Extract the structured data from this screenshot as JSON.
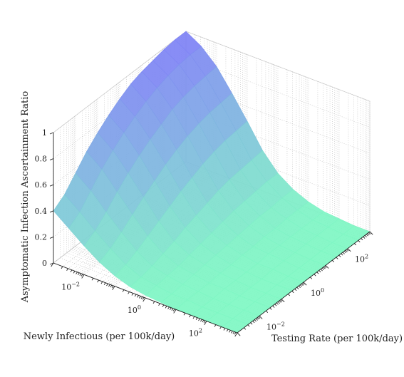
{
  "chart_data": {
    "type": "surface",
    "title": "",
    "xlabel": "Newly Infectious (per 100k/day)",
    "ylabel": "Testing Rate (per 100k/day)",
    "zlabel": "Asymptomatic Infection Ascertainment Ratio",
    "x_scale": "log",
    "y_scale": "log",
    "xlim": [
      0.001,
      1000
    ],
    "ylim": [
      0.001,
      1000
    ],
    "zlim": [
      0,
      1
    ],
    "grid": true,
    "x_ticks": [
      {
        "value": 0.01,
        "base": "10",
        "exp": "−2"
      },
      {
        "value": 1,
        "base": "10",
        "exp": "0"
      },
      {
        "value": 100,
        "base": "10",
        "exp": "2"
      }
    ],
    "y_ticks": [
      {
        "value": 0.01,
        "base": "10",
        "exp": "−2"
      },
      {
        "value": 1,
        "base": "10",
        "exp": "0"
      },
      {
        "value": 100,
        "base": "10",
        "exp": "2"
      }
    ],
    "z_ticks": [
      "0",
      "0.2",
      "0.4",
      "0.6",
      "0.8",
      "1"
    ],
    "colormap": {
      "low": "#7ff7c4",
      "high": "#7f7ff7"
    },
    "surface": {
      "x_log10": [
        -3,
        -2.5,
        -2,
        -1.5,
        -1,
        -0.5,
        0,
        0.5,
        1,
        1.5,
        2,
        2.5,
        3
      ],
      "y_log10": [
        -3,
        -2.5,
        -2,
        -1.5,
        -1,
        -0.5,
        0,
        0.5,
        1,
        1.5,
        2,
        2.5,
        3
      ],
      "z": [
        [
          0.4,
          0.46,
          0.56,
          0.66,
          0.74,
          0.81,
          0.87,
          0.92,
          0.95,
          0.97,
          0.99,
          1.0,
          1.0
        ],
        [
          0.31,
          0.37,
          0.47,
          0.57,
          0.65,
          0.72,
          0.78,
          0.83,
          0.87,
          0.9,
          0.92,
          0.93,
          0.93
        ],
        [
          0.22,
          0.27,
          0.35,
          0.44,
          0.52,
          0.59,
          0.65,
          0.7,
          0.75,
          0.78,
          0.8,
          0.81,
          0.82
        ],
        [
          0.14,
          0.18,
          0.24,
          0.31,
          0.38,
          0.44,
          0.5,
          0.55,
          0.59,
          0.62,
          0.64,
          0.65,
          0.66
        ],
        [
          0.08,
          0.1,
          0.14,
          0.19,
          0.24,
          0.29,
          0.34,
          0.38,
          0.42,
          0.45,
          0.47,
          0.48,
          0.49
        ],
        [
          0.04,
          0.05,
          0.07,
          0.1,
          0.13,
          0.17,
          0.2,
          0.23,
          0.26,
          0.28,
          0.29,
          0.3,
          0.31
        ],
        [
          0.02,
          0.03,
          0.04,
          0.05,
          0.07,
          0.09,
          0.11,
          0.13,
          0.15,
          0.16,
          0.17,
          0.18,
          0.18
        ],
        [
          0.01,
          0.01,
          0.02,
          0.03,
          0.04,
          0.05,
          0.06,
          0.07,
          0.08,
          0.09,
          0.09,
          0.1,
          0.1
        ],
        [
          0.0,
          0.01,
          0.01,
          0.01,
          0.02,
          0.02,
          0.03,
          0.03,
          0.04,
          0.04,
          0.05,
          0.05,
          0.05
        ],
        [
          0.0,
          0.0,
          0.0,
          0.01,
          0.01,
          0.01,
          0.01,
          0.02,
          0.02,
          0.02,
          0.02,
          0.02,
          0.02
        ],
        [
          0.0,
          0.0,
          0.0,
          0.0,
          0.0,
          0.0,
          0.01,
          0.01,
          0.01,
          0.01,
          0.01,
          0.01,
          0.01
        ],
        [
          0.0,
          0.0,
          0.0,
          0.0,
          0.0,
          0.0,
          0.0,
          0.0,
          0.0,
          0.0,
          0.0,
          0.0,
          0.0
        ],
        [
          0.0,
          0.0,
          0.0,
          0.0,
          0.0,
          0.0,
          0.0,
          0.0,
          0.0,
          0.0,
          0.0,
          0.0,
          0.0
        ]
      ]
    }
  }
}
